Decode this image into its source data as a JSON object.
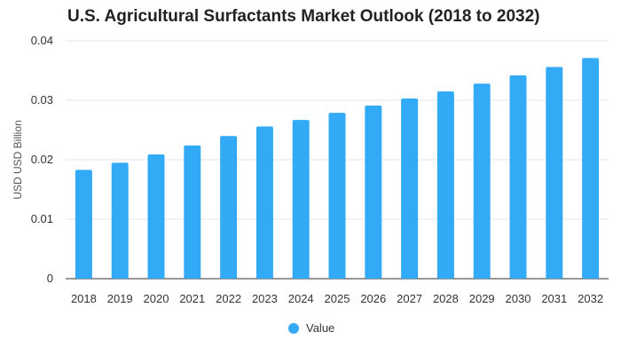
{
  "colors": {
    "bar": "#33aaf5",
    "grid": "#e6e6e6",
    "axis": "#333333"
  },
  "chart_data": {
    "type": "bar",
    "title": "U.S. Agricultural Surfactants Market Outlook (2018 to 2032)",
    "xlabel": "",
    "ylabel": "USD USD Billion",
    "ylim": [
      0,
      0.04
    ],
    "yticks": [
      "0",
      "0.01",
      "0.02",
      "0.03",
      "0.04"
    ],
    "grid": true,
    "legend_position": "bottom-center",
    "categories": [
      "2018",
      "2019",
      "2020",
      "2021",
      "2022",
      "2023",
      "2024",
      "2025",
      "2026",
      "2027",
      "2028",
      "2029",
      "2030",
      "2031",
      "2032"
    ],
    "series": [
      {
        "name": "Value",
        "values": [
          0.0183,
          0.0195,
          0.0209,
          0.0224,
          0.024,
          0.0256,
          0.0267,
          0.0279,
          0.0291,
          0.0303,
          0.0315,
          0.0328,
          0.0342,
          0.0356,
          0.0371
        ]
      }
    ]
  }
}
